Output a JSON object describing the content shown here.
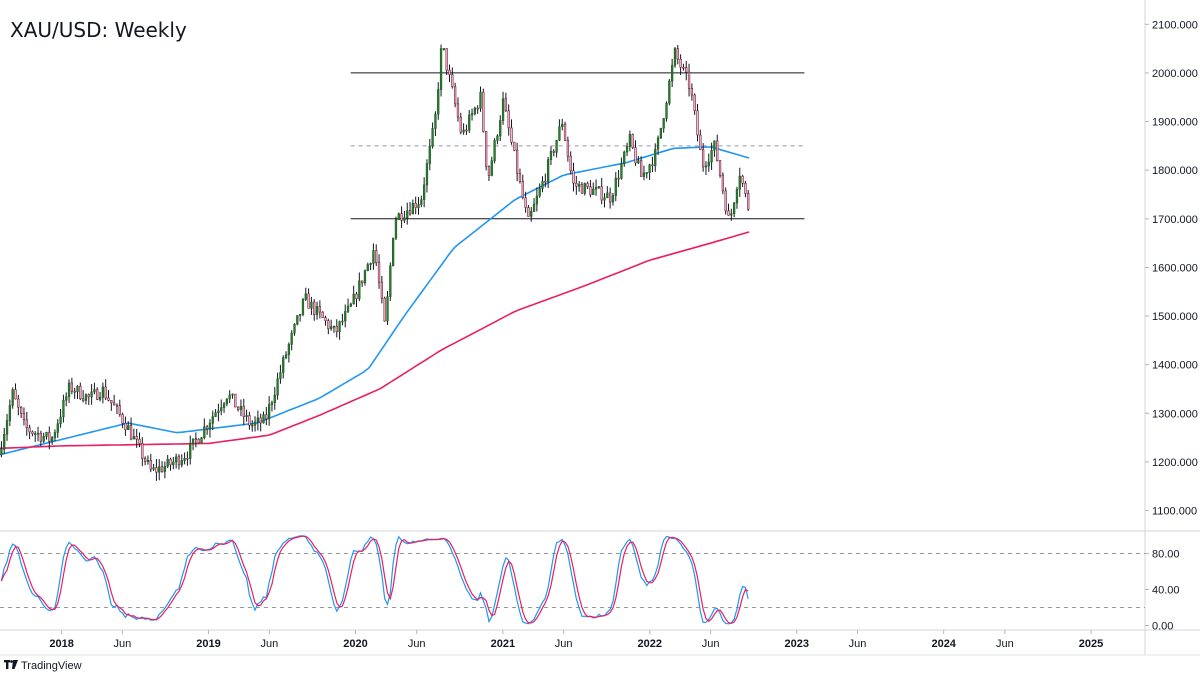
{
  "header": {
    "title": "XAU/USD: Weekly"
  },
  "brand": {
    "name": "TradingView",
    "logo_icon": "tradingview-logo-icon"
  },
  "chart_data": {
    "type": "candlestick",
    "symbol": "XAU/USD",
    "interval": "Weekly",
    "price_axis": {
      "range": [
        1060,
        2150
      ],
      "ticks": [
        {
          "value": 2100,
          "label": "2100.000"
        },
        {
          "value": 2000,
          "label": "2000.000"
        },
        {
          "value": 1900,
          "label": "1900.000"
        },
        {
          "value": 1800,
          "label": "1800.000"
        },
        {
          "value": 1700,
          "label": "1700.000"
        },
        {
          "value": 1600,
          "label": "1600.000"
        },
        {
          "value": 1500,
          "label": "1500.000"
        },
        {
          "value": 1400,
          "label": "1400.000"
        },
        {
          "value": 1300,
          "label": "1300.000"
        },
        {
          "value": 1200,
          "label": "1200.000"
        },
        {
          "value": 1100,
          "label": "1100.000"
        }
      ]
    },
    "time_axis": {
      "range": [
        "2017-08-01",
        "2025-05-15"
      ],
      "ticks": [
        {
          "date": "2018-01-01",
          "label": "2018",
          "bold": true
        },
        {
          "date": "2018-06-01",
          "label": "Jun",
          "bold": false
        },
        {
          "date": "2019-01-01",
          "label": "2019",
          "bold": true
        },
        {
          "date": "2019-06-01",
          "label": "Jun",
          "bold": false
        },
        {
          "date": "2020-01-01",
          "label": "2020",
          "bold": true
        },
        {
          "date": "2020-06-01",
          "label": "Jun",
          "bold": false
        },
        {
          "date": "2021-01-01",
          "label": "2021",
          "bold": true
        },
        {
          "date": "2021-06-01",
          "label": "Jun",
          "bold": false
        },
        {
          "date": "2022-01-01",
          "label": "2022",
          "bold": true
        },
        {
          "date": "2022-06-01",
          "label": "Jun",
          "bold": false
        },
        {
          "date": "2023-01-01",
          "label": "2023",
          "bold": true
        },
        {
          "date": "2023-06-01",
          "label": "Jun",
          "bold": false
        },
        {
          "date": "2024-01-01",
          "label": "2024",
          "bold": true
        },
        {
          "date": "2024-06-01",
          "label": "Jun",
          "bold": false
        },
        {
          "date": "2025-01-01",
          "label": "2025",
          "bold": true
        }
      ]
    },
    "price_path": [
      [
        "2017-08-01",
        1215
      ],
      [
        "2017-09-05",
        1340
      ],
      [
        "2017-10-05",
        1270
      ],
      [
        "2017-12-10",
        1245
      ],
      [
        "2018-01-25",
        1355
      ],
      [
        "2018-03-15",
        1330
      ],
      [
        "2018-04-15",
        1350
      ],
      [
        "2018-06-15",
        1275
      ],
      [
        "2018-08-15",
        1180
      ],
      [
        "2018-10-01",
        1195
      ],
      [
        "2018-11-15",
        1220
      ],
      [
        "2019-02-20",
        1340
      ],
      [
        "2019-04-20",
        1275
      ],
      [
        "2019-05-25",
        1285
      ],
      [
        "2019-07-15",
        1420
      ],
      [
        "2019-09-01",
        1535
      ],
      [
        "2019-11-15",
        1465
      ],
      [
        "2019-12-25",
        1520
      ],
      [
        "2020-02-20",
        1640
      ],
      [
        "2020-03-18",
        1475
      ],
      [
        "2020-04-10",
        1700
      ],
      [
        "2020-06-15",
        1740
      ],
      [
        "2020-07-20",
        1900
      ],
      [
        "2020-08-06",
        2060
      ],
      [
        "2020-09-25",
        1870
      ],
      [
        "2020-11-10",
        1950
      ],
      [
        "2020-11-28",
        1780
      ],
      [
        "2021-01-05",
        1940
      ],
      [
        "2021-03-08",
        1690
      ],
      [
        "2021-04-20",
        1790
      ],
      [
        "2021-06-01",
        1900
      ],
      [
        "2021-06-28",
        1770
      ],
      [
        "2021-08-09",
        1760
      ],
      [
        "2021-09-29",
        1745
      ],
      [
        "2021-11-16",
        1860
      ],
      [
        "2021-12-15",
        1785
      ],
      [
        "2022-01-20",
        1835
      ],
      [
        "2022-03-08",
        2040
      ],
      [
        "2022-04-15",
        1970
      ],
      [
        "2022-05-15",
        1810
      ],
      [
        "2022-06-15",
        1850
      ],
      [
        "2022-07-21",
        1690
      ],
      [
        "2022-08-15",
        1800
      ],
      [
        "2022-09-05",
        1725
      ]
    ],
    "series": [
      {
        "name": "",
        "type": "moving-average",
        "color": "#2196f3",
        "values": [
          [
            "2017-08-01",
            1215
          ],
          [
            "2018-06-15",
            1280
          ],
          [
            "2018-10-15",
            1260
          ],
          [
            "2019-05-01",
            1280
          ],
          [
            "2019-10-01",
            1330
          ],
          [
            "2020-02-01",
            1390
          ],
          [
            "2020-05-01",
            1500
          ],
          [
            "2020-09-01",
            1640
          ],
          [
            "2021-02-01",
            1740
          ],
          [
            "2021-06-01",
            1790
          ],
          [
            "2021-11-01",
            1815
          ],
          [
            "2022-03-01",
            1845
          ],
          [
            "2022-06-01",
            1848
          ],
          [
            "2022-09-05",
            1825
          ]
        ]
      },
      {
        "name": "",
        "type": "moving-average",
        "color": "#e91e63",
        "values": [
          [
            "2017-08-01",
            1228
          ],
          [
            "2018-01-01",
            1233
          ],
          [
            "2019-01-01",
            1238
          ],
          [
            "2019-06-01",
            1255
          ],
          [
            "2019-10-01",
            1295
          ],
          [
            "2020-03-01",
            1350
          ],
          [
            "2020-08-01",
            1430
          ],
          [
            "2021-02-01",
            1510
          ],
          [
            "2021-08-01",
            1565
          ],
          [
            "2022-01-01",
            1615
          ],
          [
            "2022-06-01",
            1650
          ],
          [
            "2022-09-05",
            1673
          ]
        ]
      }
    ],
    "horizontal_lines": [
      {
        "value": 2000,
        "style": "solid",
        "from": "2019-12-20",
        "to": "2023-01-20"
      },
      {
        "value": 1850,
        "style": "dashed",
        "from": "2019-12-20",
        "to": "2023-01-20"
      },
      {
        "value": 1700,
        "style": "solid",
        "from": "2019-12-20",
        "to": "2023-01-20"
      }
    ],
    "oscillator": {
      "type": "stochastic",
      "range": [
        -5,
        105
      ],
      "ticks": [
        {
          "value": 80,
          "label": "80.00"
        },
        {
          "value": 40,
          "label": "40.00"
        },
        {
          "value": 0,
          "label": "0.00"
        }
      ],
      "levels": [
        80,
        20
      ],
      "k_color": "#2196f3",
      "d_color": "#e91e63"
    }
  }
}
